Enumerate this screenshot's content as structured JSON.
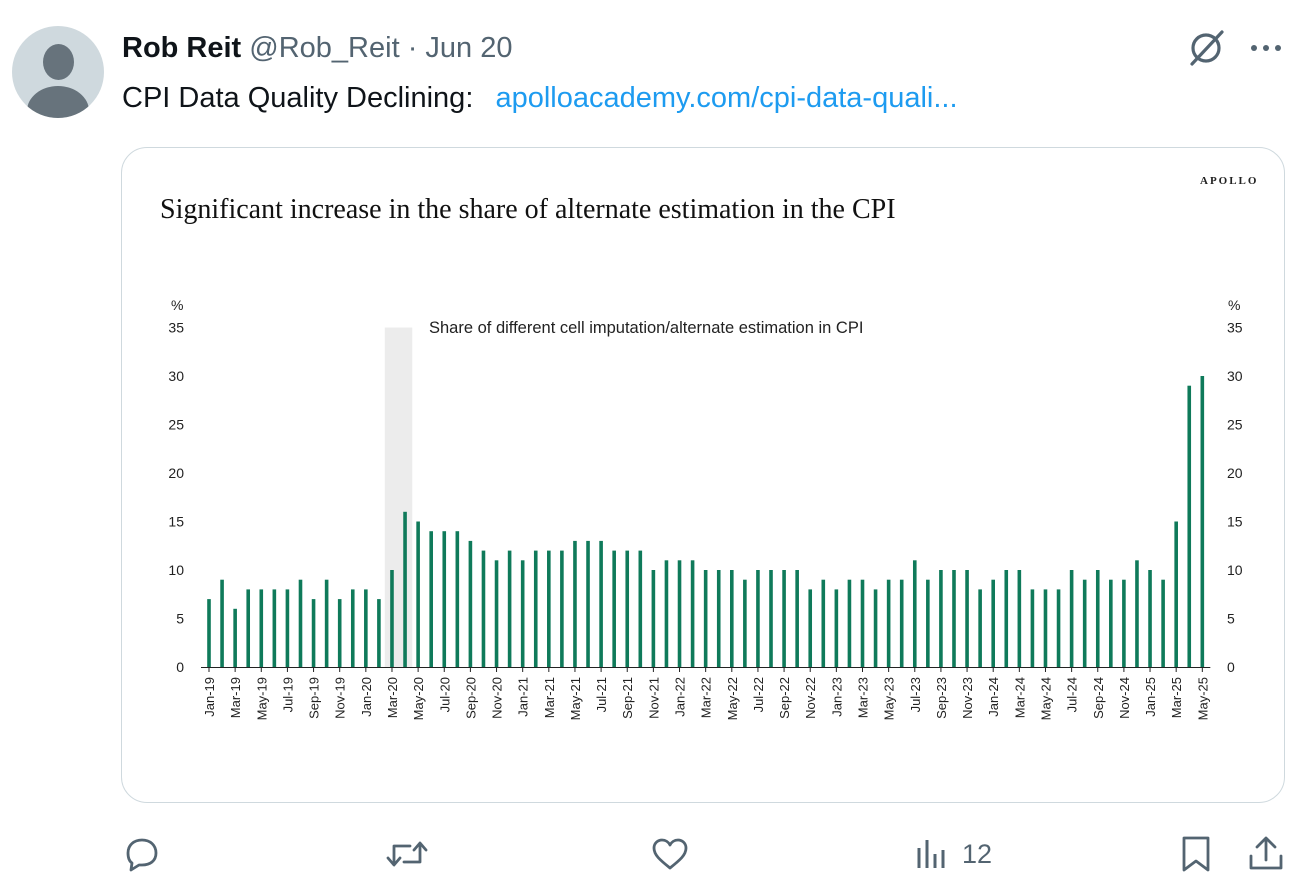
{
  "tweet": {
    "author_name": "Rob Reit",
    "handle": "@Rob_Reit",
    "separator": "·",
    "date": "Jun 20",
    "text": "CPI Data Quality Declining:",
    "link_text": "apolloacademy.com/cpi-data-quali..."
  },
  "icons": {
    "avatar": "default-avatar-icon",
    "grok": "grok-icon",
    "more": "more-options-icon",
    "reply": "reply-icon",
    "retweet": "retweet-icon",
    "like": "like-icon",
    "views": "views-icon",
    "bookmark": "bookmark-icon",
    "share": "share-icon"
  },
  "actions": {
    "view_count": "12"
  },
  "colors": {
    "bar": "#0f7a5a",
    "link": "#1d9bf0",
    "muted": "#536471",
    "shade": "#e6e6e6"
  },
  "chart": {
    "brand": "APOLLO",
    "title": "Significant increase in the share of alternate estimation in the CPI"
  },
  "chart_data": {
    "type": "bar",
    "title": "Significant increase in the share of alternate estimation in the CPI",
    "annotation": "Share of different cell imputation/alternate estimation in CPI",
    "y_unit_left": "%",
    "y_unit_right": "%",
    "ylim": [
      0,
      35
    ],
    "yticks": [
      0,
      5,
      10,
      15,
      20,
      25,
      30,
      35
    ],
    "grid": false,
    "shaded_periods": [
      [
        "Mar-20",
        "Apr-20"
      ]
    ],
    "x_tick_labels": [
      "Jan-19",
      "Mar-19",
      "May-19",
      "Jul-19",
      "Sep-19",
      "Nov-19",
      "Jan-20",
      "Mar-20",
      "May-20",
      "Jul-20",
      "Sep-20",
      "Nov-20",
      "Jan-21",
      "Mar-21",
      "May-21",
      "Jul-21",
      "Sep-21",
      "Nov-21",
      "Jan-22",
      "Mar-22",
      "May-22",
      "Jul-22",
      "Sep-22",
      "Nov-22",
      "Jan-23",
      "Mar-23",
      "May-23",
      "Jul-23",
      "Sep-23",
      "Nov-23",
      "Jan-24",
      "Mar-24",
      "May-24",
      "Jul-24",
      "Sep-24",
      "Nov-24",
      "Jan-25",
      "Mar-25",
      "May-25"
    ],
    "categories": [
      "Jan-19",
      "Feb-19",
      "Mar-19",
      "Apr-19",
      "May-19",
      "Jun-19",
      "Jul-19",
      "Aug-19",
      "Sep-19",
      "Oct-19",
      "Nov-19",
      "Dec-19",
      "Jan-20",
      "Feb-20",
      "Mar-20",
      "Apr-20",
      "May-20",
      "Jun-20",
      "Jul-20",
      "Aug-20",
      "Sep-20",
      "Oct-20",
      "Nov-20",
      "Dec-20",
      "Jan-21",
      "Feb-21",
      "Mar-21",
      "Apr-21",
      "May-21",
      "Jun-21",
      "Jul-21",
      "Aug-21",
      "Sep-21",
      "Oct-21",
      "Nov-21",
      "Dec-21",
      "Jan-22",
      "Feb-22",
      "Mar-22",
      "Apr-22",
      "May-22",
      "Jun-22",
      "Jul-22",
      "Aug-22",
      "Sep-22",
      "Oct-22",
      "Nov-22",
      "Dec-22",
      "Jan-23",
      "Feb-23",
      "Mar-23",
      "Apr-23",
      "May-23",
      "Jun-23",
      "Jul-23",
      "Aug-23",
      "Sep-23",
      "Oct-23",
      "Nov-23",
      "Dec-23",
      "Jan-24",
      "Feb-24",
      "Mar-24",
      "Apr-24",
      "May-24",
      "Jun-24",
      "Jul-24",
      "Aug-24",
      "Sep-24",
      "Oct-24",
      "Nov-24",
      "Dec-24",
      "Jan-25",
      "Feb-25",
      "Mar-25",
      "Apr-25",
      "May-25"
    ],
    "values": [
      7,
      9,
      6,
      8,
      8,
      8,
      8,
      9,
      7,
      9,
      7,
      8,
      8,
      7,
      10,
      16,
      15,
      14,
      14,
      14,
      13,
      12,
      11,
      12,
      11,
      12,
      12,
      12,
      13,
      13,
      13,
      12,
      12,
      12,
      10,
      11,
      11,
      11,
      10,
      10,
      10,
      9,
      10,
      10,
      10,
      10,
      8,
      9,
      8,
      9,
      9,
      8,
      9,
      9,
      11,
      9,
      10,
      10,
      10,
      8,
      9,
      10,
      10,
      8,
      8,
      8,
      10,
      9,
      10,
      9,
      9,
      11,
      10,
      9,
      15,
      29,
      30
    ]
  }
}
